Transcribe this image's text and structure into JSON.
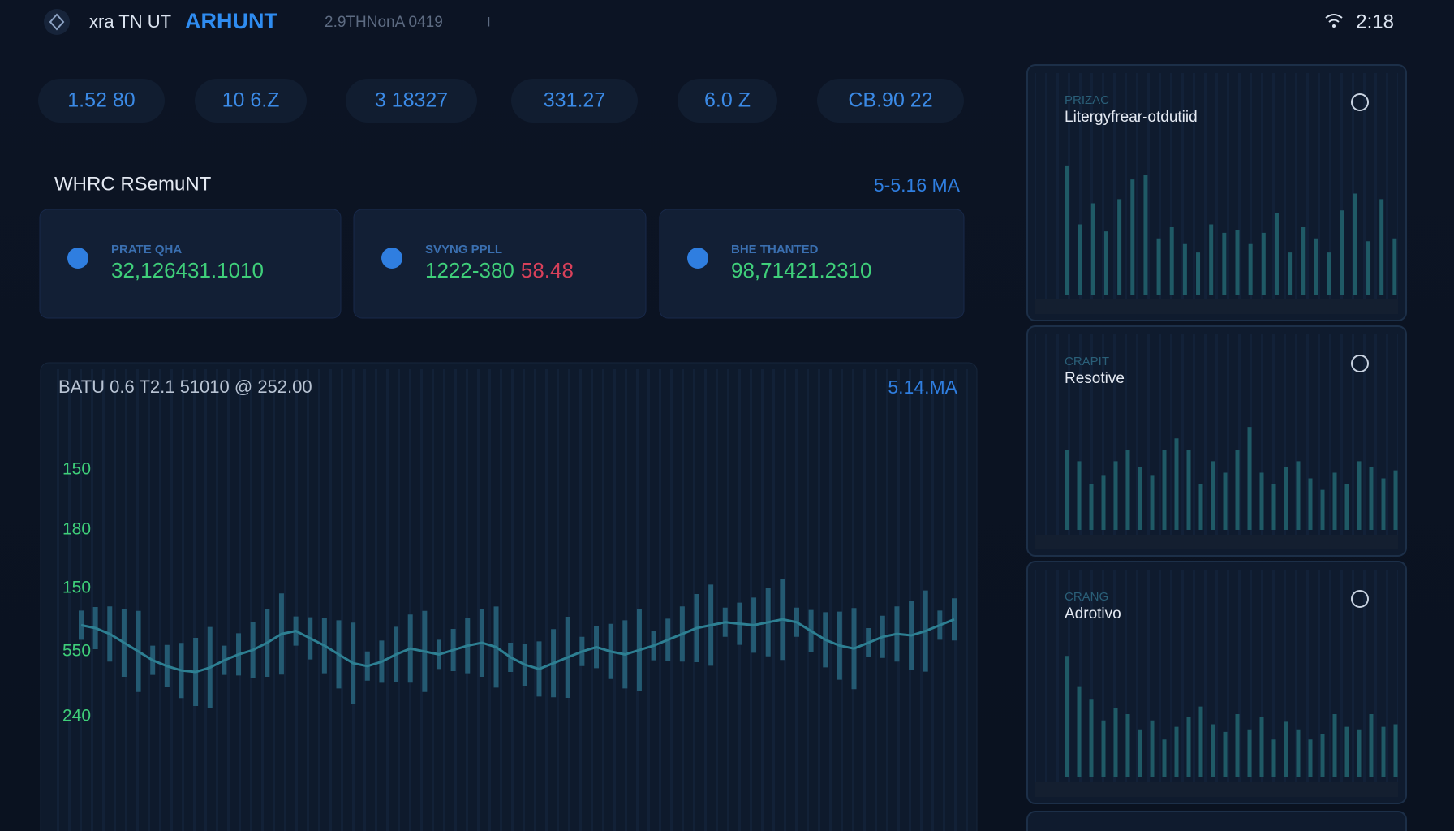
{
  "header": {
    "prefix": "xra TN UT",
    "brand": "ARHUNT",
    "meta": "2.9THNonA 0419",
    "sep": "I",
    "time": "2:18"
  },
  "pills": [
    "1.52 80",
    "10 6.Z",
    "3 18327",
    "331.27",
    "6.0 Z",
    "CB.90 22"
  ],
  "section": {
    "title": "WHRC RSemuNT",
    "right": "5-5.16 MA"
  },
  "cards": [
    {
      "label": "PRATE QHA",
      "value": "32,126431.1010"
    },
    {
      "label": "SVYNG PPLL",
      "value": "1222-380",
      "extra": "58.48"
    },
    {
      "label": "BHE THANTED",
      "value": "98,71421.2310"
    }
  ],
  "main": {
    "title": "BATU 0.6 T2.1 51010 @ 252.00",
    "right": "5.14.MA",
    "axis_labels": [
      "150",
      "180",
      "150",
      "550",
      "240"
    ],
    "ylim": [
      0,
      100
    ],
    "values": [
      72,
      70,
      66,
      60,
      54,
      48,
      44,
      41,
      40,
      43,
      48,
      52,
      55,
      60,
      66,
      68,
      63,
      58,
      52,
      46,
      44,
      47,
      52,
      56,
      54,
      52,
      55,
      58,
      60,
      57,
      50,
      45,
      42,
      46,
      50,
      54,
      57,
      54,
      52,
      55,
      58,
      62,
      66,
      70,
      72,
      74,
      73,
      72,
      74,
      76,
      74,
      68,
      62,
      58,
      56,
      60,
      64,
      66,
      65,
      68,
      72,
      76
    ]
  },
  "panels": [
    {
      "tag": "PRIZAC",
      "title": "Litergyfrear-otdutiid",
      "bars": [
        92,
        50,
        65,
        45,
        68,
        82,
        85,
        40,
        48,
        36,
        30,
        50,
        44,
        46,
        36,
        44,
        58,
        30,
        48,
        40,
        30,
        60,
        72,
        38,
        68,
        40
      ]
    },
    {
      "tag": "CRAPIT",
      "title": "Resotive",
      "bars": [
        70,
        60,
        40,
        48,
        60,
        70,
        55,
        48,
        70,
        80,
        70,
        40,
        60,
        50,
        70,
        90,
        50,
        40,
        55,
        60,
        45,
        35,
        50,
        40,
        60,
        55,
        45,
        52
      ]
    },
    {
      "tag": "CRANG",
      "title": "Adrotivo",
      "bars": [
        96,
        72,
        62,
        45,
        55,
        50,
        38,
        45,
        30,
        40,
        48,
        56,
        42,
        36,
        50,
        38,
        48,
        30,
        44,
        38,
        30,
        34,
        50,
        40,
        38,
        50,
        40,
        42
      ]
    }
  ]
}
